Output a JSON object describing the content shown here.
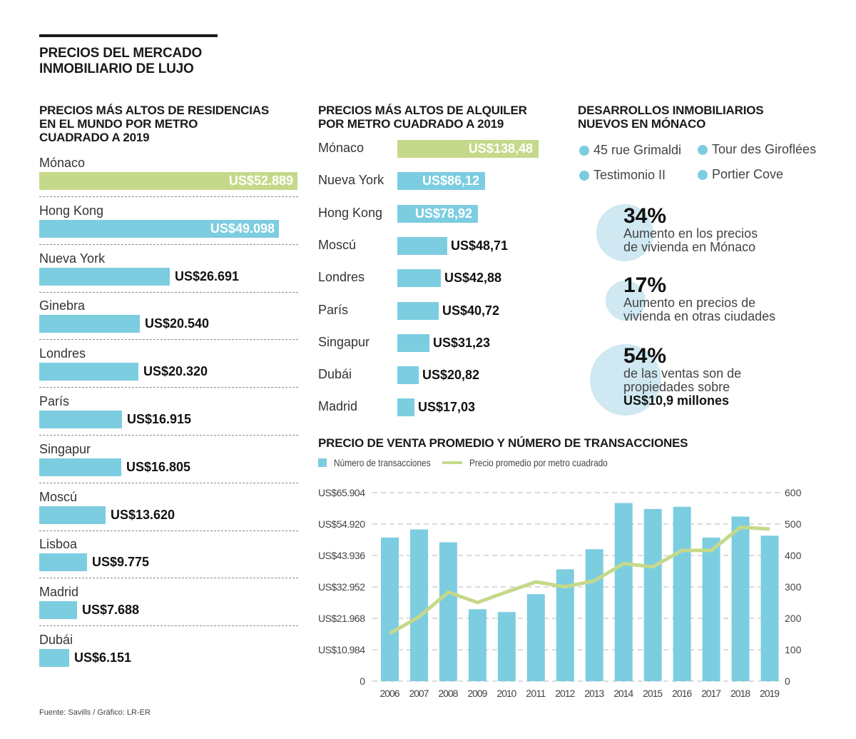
{
  "header": {
    "title_line1": "PRECIOS DEL MERCADO",
    "title_line2": "INMOBILIARIO DE LUJO"
  },
  "colors": {
    "green": "#c5d98a",
    "blue": "#7ccde0",
    "line": "#c5d98a",
    "circle": "#cfe8f2",
    "text": "#1a1a1a"
  },
  "residences": {
    "title_lines": [
      "PRECIOS MÁS ALTOS DE RESIDENCIAS",
      "EN EL MUNDO POR METRO",
      "CUADRADO A 2019"
    ],
    "items": [
      {
        "city": "Mónaco",
        "value": 52889,
        "label": "US$52.889",
        "highlight": true
      },
      {
        "city": "Hong Kong",
        "value": 49098,
        "label": "US$49.098",
        "highlight": false
      },
      {
        "city": "Nueva York",
        "value": 26691,
        "label": "US$26.691",
        "highlight": false
      },
      {
        "city": "Ginebra",
        "value": 20540,
        "label": "US$20.540",
        "highlight": false
      },
      {
        "city": "Londres",
        "value": 20320,
        "label": "US$20.320",
        "highlight": false
      },
      {
        "city": "París",
        "value": 16915,
        "label": "US$16.915",
        "highlight": false
      },
      {
        "city": "Singapur",
        "value": 16805,
        "label": "US$16.805",
        "highlight": false
      },
      {
        "city": "Moscú",
        "value": 13620,
        "label": "US$13.620",
        "highlight": false
      },
      {
        "city": "Lisboa",
        "value": 9775,
        "label": "US$9.775",
        "highlight": false
      },
      {
        "city": "Madrid",
        "value": 7688,
        "label": "US$7.688",
        "highlight": false
      },
      {
        "city": "Dubái",
        "value": 6151,
        "label": "US$6.151",
        "highlight": false
      }
    ]
  },
  "rentals": {
    "title_lines": [
      "PRECIOS MÁS ALTOS DE ALQUILER",
      "POR METRO CUADRADO A 2019"
    ],
    "items": [
      {
        "city": "Mónaco",
        "value": 138.48,
        "label": "US$138,48",
        "highlight": true
      },
      {
        "city": "Nueva York",
        "value": 86.12,
        "label": "US$86,12",
        "highlight": false
      },
      {
        "city": "Hong Kong",
        "value": 78.92,
        "label": "US$78,92",
        "highlight": false
      },
      {
        "city": "Moscú",
        "value": 48.71,
        "label": "US$48,71",
        "highlight": false
      },
      {
        "city": "Londres",
        "value": 42.88,
        "label": "US$42,88",
        "highlight": false
      },
      {
        "city": "París",
        "value": 40.72,
        "label": "US$40,72",
        "highlight": false
      },
      {
        "city": "Singapur",
        "value": 31.23,
        "label": "US$31,23",
        "highlight": false
      },
      {
        "city": "Dubái",
        "value": 20.82,
        "label": "US$20,82",
        "highlight": false
      },
      {
        "city": "Madrid",
        "value": 17.03,
        "label": "US$17,03",
        "highlight": false
      }
    ]
  },
  "developments": {
    "title_lines": [
      "DESARROLLOS INMOBILIARIOS",
      "NUEVOS EN MÓNACO"
    ],
    "items": [
      "45 rue Grimaldi",
      "Tour des Giroflées",
      "Testimonio II",
      "Portier Cove"
    ]
  },
  "stats": [
    {
      "pct": "34%",
      "lines": [
        "Aumento en los precios",
        "de vivienda en Mónaco"
      ],
      "bold_line": ""
    },
    {
      "pct": "17%",
      "lines": [
        "Aumento en precios de",
        "vivienda en otras ciudades"
      ],
      "bold_line": ""
    },
    {
      "pct": "54%",
      "lines": [
        "de las ventas son de",
        "propiedades sobre"
      ],
      "bold_line": "US$10,9 millones"
    }
  ],
  "footer": {
    "source": "Fuente: Savills / Gráfico: LR-ER"
  },
  "chart_data": [
    {
      "type": "bar",
      "title": "PRECIOS MÁS ALTOS DE RESIDENCIAS EN EL MUNDO POR METRO CUADRADO A 2019",
      "orientation": "horizontal",
      "categories": [
        "Mónaco",
        "Hong Kong",
        "Nueva York",
        "Ginebra",
        "Londres",
        "París",
        "Singapur",
        "Moscú",
        "Lisboa",
        "Madrid",
        "Dubái"
      ],
      "values": [
        52889,
        49098,
        26691,
        20540,
        20320,
        16915,
        16805,
        13620,
        9775,
        7688,
        6151
      ],
      "unit": "US$ per m²"
    },
    {
      "type": "bar",
      "title": "PRECIOS MÁS ALTOS DE ALQUILER POR METRO CUADRADO A 2019",
      "orientation": "horizontal",
      "categories": [
        "Mónaco",
        "Nueva York",
        "Hong Kong",
        "Moscú",
        "Londres",
        "París",
        "Singapur",
        "Dubái",
        "Madrid"
      ],
      "values": [
        138.48,
        86.12,
        78.92,
        48.71,
        42.88,
        40.72,
        31.23,
        20.82,
        17.03
      ],
      "unit": "US$ per m²"
    },
    {
      "type": "bar+line",
      "title": "PRECIO DE VENTA PROMEDIO Y NÚMERO DE TRANSACCIONES",
      "categories": [
        "2006",
        "2007",
        "2008",
        "2009",
        "2010",
        "2011",
        "2012",
        "2013",
        "2014",
        "2015",
        "2016",
        "2017",
        "2018",
        "2019"
      ],
      "series": [
        {
          "name": "Número de transacciones",
          "type": "bar",
          "axis": "right",
          "values": [
            457,
            483,
            442,
            229,
            220,
            277,
            356,
            420,
            567,
            548,
            555,
            457,
            524,
            463
          ]
        },
        {
          "name": "Precio promedio por metro cuadrado",
          "type": "line",
          "axis": "left",
          "values": [
            16700,
            22500,
            31100,
            27500,
            31200,
            34700,
            33000,
            35100,
            41100,
            40000,
            45700,
            45700,
            53800,
            53200
          ]
        }
      ],
      "left_axis": {
        "ylim": [
          0,
          65904
        ],
        "ticks": [
          "0",
          "US$10.984",
          "US$21.968",
          "US$32.952",
          "US$43.936",
          "US$54.920",
          "US$65.904"
        ]
      },
      "right_axis": {
        "ylim": [
          0,
          600
        ],
        "ticks": [
          "0",
          "100",
          "200",
          "300",
          "400",
          "500",
          "600"
        ]
      },
      "legend": {
        "position": "top-left",
        "entries": [
          "Número de transacciones",
          "Precio promedio por metro cuadrado"
        ]
      },
      "grid": true
    }
  ]
}
